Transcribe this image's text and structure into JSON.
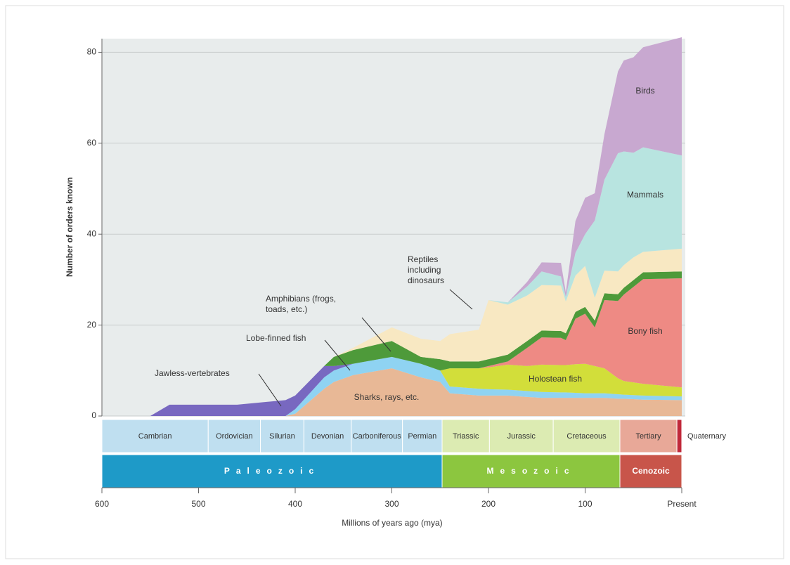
{
  "chart_data": {
    "type": "stacked-area",
    "ylabel": "Number of orders known",
    "xlabel": "Millions of years ago (mya)",
    "xlim": [
      600,
      0
    ],
    "ylim": [
      0,
      83
    ],
    "xticks": [
      600,
      500,
      400,
      300,
      200,
      100,
      {
        "value": 0,
        "label": "Present"
      }
    ],
    "yticks": [
      0,
      20,
      40,
      60,
      80
    ],
    "grid": true,
    "x": [
      600,
      550,
      530,
      460,
      410,
      400,
      370,
      360,
      340,
      300,
      270,
      250,
      240,
      210,
      200,
      180,
      160,
      145,
      125,
      120,
      110,
      100,
      90,
      80,
      66,
      60,
      50,
      40,
      0
    ],
    "series": [
      {
        "name": "Sharks, rays, etc.",
        "color": "#e8b896",
        "values": [
          0,
          0,
          0,
          0,
          0,
          0.5,
          6,
          7.5,
          9,
          10.5,
          8.5,
          7.5,
          5,
          4.5,
          4.5,
          4.5,
          4.2,
          4,
          4,
          4,
          4,
          4,
          4,
          4,
          3.8,
          3.8,
          3.7,
          3.6,
          3.5
        ]
      },
      {
        "name": "Lobe-finned fish",
        "color": "#8fd3f2",
        "values": [
          0,
          0,
          0,
          0,
          0,
          1,
          2.5,
          2.5,
          2.5,
          2.5,
          3,
          2.5,
          1.5,
          1.5,
          1.4,
          1.3,
          1.3,
          1.3,
          1.2,
          1.2,
          1.1,
          1,
          1,
          1,
          1,
          0.9,
          0.9,
          0.9,
          0.8
        ]
      },
      {
        "name": "Jawless-vertebrates",
        "color": "#7868c0",
        "values": [
          0,
          0,
          2.5,
          2.5,
          3.5,
          3,
          2.5,
          1,
          0,
          0,
          0,
          0,
          0,
          0,
          0,
          0,
          0,
          0,
          0,
          0,
          0,
          0,
          0,
          0,
          0,
          0,
          0,
          0,
          0
        ]
      },
      {
        "name": "Holostean fish",
        "color": "#d2de3a",
        "values": [
          0,
          0,
          0,
          0,
          0,
          0,
          0,
          0,
          0,
          0,
          0,
          0,
          4,
          4.5,
          4.8,
          5.5,
          5.5,
          6,
          6,
          6,
          6.3,
          6.5,
          6,
          5.5,
          3.5,
          3,
          2.8,
          2.6,
          2
        ]
      },
      {
        "name": "Bony fish",
        "color": "#ee8a84",
        "values": [
          0,
          0,
          0,
          0,
          0,
          0,
          0,
          0,
          0,
          0,
          0,
          0,
          0,
          0,
          0.3,
          0.7,
          4,
          6,
          6,
          5.5,
          10,
          11,
          8.5,
          15,
          17,
          19,
          21,
          23,
          24
        ]
      },
      {
        "name": "Amphibians (frogs, toads, etc.)",
        "color": "#4e9a3a",
        "values": [
          0,
          0,
          0,
          0,
          0,
          0,
          0,
          2,
          3,
          3.5,
          1.5,
          2.5,
          1.5,
          1.5,
          1.5,
          1.5,
          1.5,
          1.5,
          1.5,
          1.5,
          1.5,
          1.5,
          1.5,
          1.5,
          1.5,
          1.5,
          1.5,
          1.5,
          1.5
        ]
      },
      {
        "name": "Reptiles including dinosaurs",
        "color": "#f8e8c2",
        "values": [
          0,
          0,
          0,
          0,
          0,
          0,
          0,
          0,
          0.5,
          3,
          4,
          4,
          6,
          7,
          13,
          11,
          10,
          10,
          10,
          7,
          8,
          9,
          5,
          5,
          5,
          5,
          5,
          4.5,
          5
        ]
      },
      {
        "name": "Mammals",
        "color": "#b8e4e0",
        "values": [
          0,
          0,
          0,
          0,
          0,
          0,
          0,
          0,
          0,
          0,
          0,
          0,
          0,
          0,
          0,
          0.5,
          2,
          3,
          2,
          1,
          5,
          7,
          17,
          20,
          26,
          25,
          23,
          23,
          20.5
        ]
      },
      {
        "name": "Birds",
        "color": "#c8a8d0",
        "values": [
          0,
          0,
          0,
          0,
          0,
          0,
          0,
          0,
          0,
          0,
          0,
          0,
          0,
          0,
          0,
          0,
          1,
          2,
          3,
          1,
          7,
          8,
          6,
          10,
          18,
          20,
          21,
          22,
          26
        ]
      }
    ],
    "periods": [
      {
        "name": "Cambrian",
        "start": 600,
        "end": 490,
        "color": "#bfdff0"
      },
      {
        "name": "Ordovician",
        "start": 490,
        "end": 436,
        "color": "#bfdff0"
      },
      {
        "name": "Silurian",
        "start": 436,
        "end": 391,
        "color": "#bfdff0"
      },
      {
        "name": "Devonian",
        "start": 391,
        "end": 342,
        "color": "#bfdff0"
      },
      {
        "name": "Carboniferous",
        "start": 342,
        "end": 289,
        "color": "#bfdff0"
      },
      {
        "name": "Permian",
        "start": 289,
        "end": 248,
        "color": "#bfdff0"
      },
      {
        "name": "Triassic",
        "start": 248,
        "end": 199,
        "color": "#dcebb2"
      },
      {
        "name": "Jurassic",
        "start": 199,
        "end": 133,
        "color": "#dcebb2"
      },
      {
        "name": "Cretaceous",
        "start": 133,
        "end": 64,
        "color": "#dcebb2"
      },
      {
        "name": "Tertiary",
        "start": 64,
        "end": 5,
        "color": "#e8a898"
      },
      {
        "name": "Quaternary",
        "start": 5,
        "end": 0,
        "color": "#c0283a"
      }
    ],
    "eras": [
      {
        "name": "Paleozoic",
        "start": 600,
        "end": 248,
        "color": "#1e9ac8"
      },
      {
        "name": "Mesozoic",
        "start": 248,
        "end": 64,
        "color": "#8cc63f"
      },
      {
        "name": "Cenozoic",
        "start": 64,
        "end": 0,
        "color": "#c8554a"
      }
    ]
  }
}
